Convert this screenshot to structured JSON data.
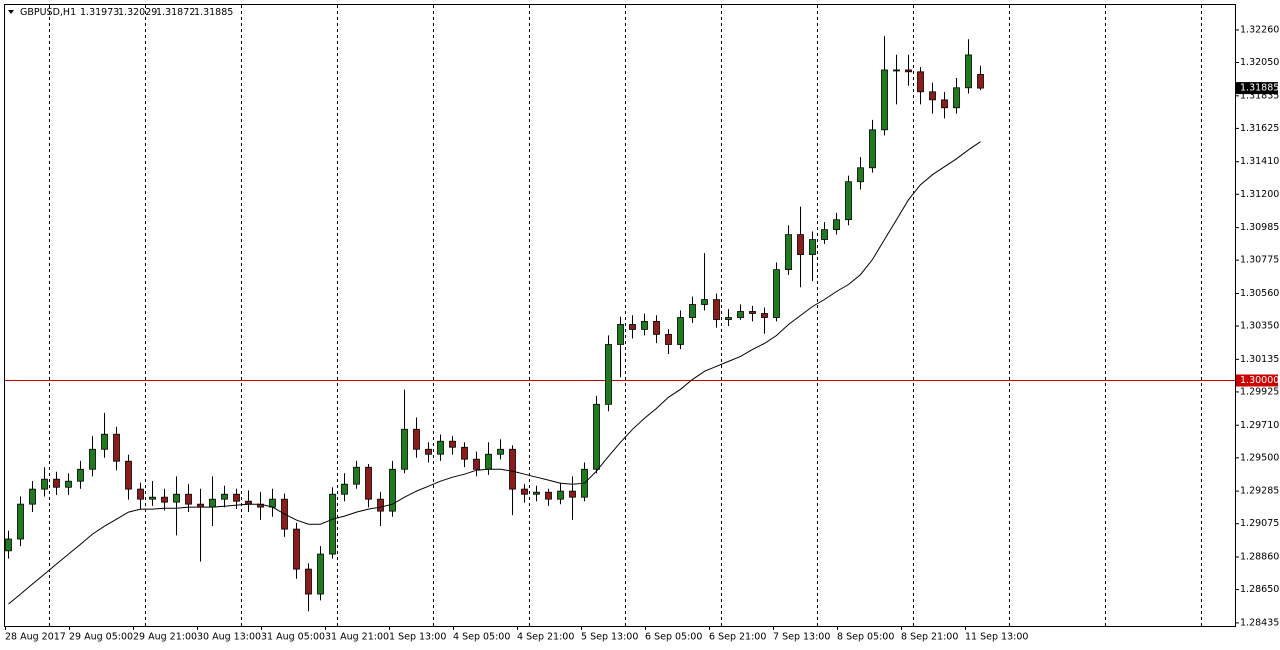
{
  "chart_data": {
    "type": "candlestick",
    "symbol": "GBPUSD,H1",
    "bull_color": "#1f7a1f",
    "bear_color": "#8b1c1c",
    "ylim": [
      1.28415,
      1.32421
    ],
    "yticks": [
      {
        "value": 1.3226,
        "label": "1.32260"
      },
      {
        "value": 1.3205,
        "label": "1.32050"
      },
      {
        "value": 1.31835,
        "label": "1.31835"
      },
      {
        "value": 1.31625,
        "label": "1.31625"
      },
      {
        "value": 1.3141,
        "label": "1.31410"
      },
      {
        "value": 1.312,
        "label": "1.31200"
      },
      {
        "value": 1.30985,
        "label": "1.30985"
      },
      {
        "value": 1.30775,
        "label": "1.30775"
      },
      {
        "value": 1.3056,
        "label": "1.30560"
      },
      {
        "value": 1.3035,
        "label": "1.30350"
      },
      {
        "value": 1.30135,
        "label": "1.30135"
      },
      {
        "value": 1.29925,
        "label": "1.29925"
      },
      {
        "value": 1.2971,
        "label": "1.29710"
      },
      {
        "value": 1.295,
        "label": "1.29500"
      },
      {
        "value": 1.29285,
        "label": "1.29285"
      },
      {
        "value": 1.29075,
        "label": "1.29075"
      },
      {
        "value": 1.2886,
        "label": "1.28860"
      },
      {
        "value": 1.2865,
        "label": "1.28650"
      },
      {
        "value": 1.28435,
        "label": "1.28435"
      }
    ],
    "time_labels": [
      "28 Aug 2017",
      "29 Aug 05:00",
      "29 Aug 21:00",
      "30 Aug 13:00",
      "31 Aug 05:00",
      "31 Aug 21:00",
      "1 Sep 13:00",
      "4 Sep 05:00",
      "4 Sep 21:00",
      "5 Sep 13:00",
      "6 Sep 05:00",
      "6 Sep 21:00",
      "7 Sep 13:00",
      "8 Sep 05:00",
      "8 Sep 21:00",
      "11 Sep 13:00"
    ],
    "hline": {
      "value": 1.3,
      "label": "1.30000",
      "color": "#cc0000"
    },
    "open": [
      1.289,
      1.28976,
      1.29201,
      1.29298,
      1.29362,
      1.2931,
      1.29349,
      1.29426,
      1.29555,
      1.29652,
      1.29478,
      1.29298,
      1.29233,
      1.29246,
      1.29214,
      1.29265,
      1.29201,
      1.29182,
      1.29233,
      1.29265,
      1.2922,
      1.29201,
      1.29182,
      1.29233,
      1.2904,
      1.28782,
      1.28621,
      1.28879,
      1.29265,
      1.2933,
      1.29439,
      1.29233,
      1.29156,
      1.29426,
      1.29684,
      1.29555,
      1.29523,
      1.29607,
      1.29568,
      1.29491,
      1.29426,
      1.29523,
      1.29555,
      1.29298,
      1.29265,
      1.29278,
      1.29233,
      1.29285,
      1.29246,
      1.29426,
      1.29845,
      1.30231,
      1.3036,
      1.30328,
      1.3038,
      1.30296,
      1.30231,
      1.30405,
      1.30489,
      1.30521,
      1.30392,
      1.30405,
      1.30444,
      1.30431,
      1.30405,
      1.30714,
      1.3094,
      1.30811,
      1.30908,
      1.30972,
      1.31036,
      1.31281,
      1.31371,
      1.31616,
      1.32002,
      1.32002,
      1.3199,
      1.31861,
      1.31809,
      1.31758,
      1.31887,
      1.31973
    ],
    "high": [
      1.2903,
      1.2925,
      1.2935,
      1.2944,
      1.2941,
      1.294,
      1.2948,
      1.2964,
      1.2979,
      1.297,
      1.2952,
      1.2934,
      1.2935,
      1.293,
      1.2938,
      1.2933,
      1.293,
      1.2938,
      1.2932,
      1.293,
      1.2929,
      1.2928,
      1.293,
      1.2927,
      1.2908,
      1.2882,
      1.2893,
      1.2931,
      1.294,
      1.2948,
      1.2946,
      1.2928,
      1.2948,
      1.2994,
      1.2976,
      1.296,
      1.2965,
      1.2964,
      1.296,
      1.2954,
      1.296,
      1.2962,
      1.2958,
      1.2933,
      1.2932,
      1.293,
      1.2934,
      1.2938,
      1.2947,
      1.299,
      1.3029,
      1.3041,
      1.3042,
      1.3043,
      1.3042,
      1.3033,
      1.3045,
      1.3054,
      1.3082,
      1.3056,
      1.3046,
      1.3049,
      1.3048,
      1.3047,
      1.3076,
      1.31,
      1.3112,
      1.3096,
      1.3102,
      1.3108,
      1.3132,
      1.3144,
      1.3168,
      1.3222,
      1.321,
      1.321,
      1.3202,
      1.3192,
      1.3186,
      1.3195,
      1.322,
      1.32029
    ],
    "low": [
      1.2885,
      1.2893,
      1.2915,
      1.2925,
      1.2926,
      1.2926,
      1.293,
      1.2938,
      1.295,
      1.2942,
      1.2923,
      1.2917,
      1.2919,
      1.2916,
      1.29,
      1.2915,
      1.2883,
      1.2906,
      1.2918,
      1.2917,
      1.2915,
      1.291,
      1.2912,
      1.2899,
      1.2872,
      1.2851,
      1.2858,
      1.2885,
      1.2922,
      1.293,
      1.2918,
      1.2906,
      1.2912,
      1.294,
      1.295,
      1.2947,
      1.2948,
      1.2952,
      1.2944,
      1.2938,
      1.2939,
      1.2949,
      1.2913,
      1.2921,
      1.2922,
      1.2919,
      1.292,
      1.291,
      1.2922,
      1.294,
      1.298,
      1.3002,
      1.3027,
      1.3029,
      1.3024,
      1.3017,
      1.302,
      1.3037,
      1.3045,
      1.3034,
      1.3035,
      1.3039,
      1.3038,
      1.303,
      1.3038,
      1.3068,
      1.306,
      1.3064,
      1.3088,
      1.3094,
      1.31,
      1.3123,
      1.3134,
      1.3158,
      1.3178,
      1.319,
      1.3178,
      1.3172,
      1.3169,
      1.3172,
      1.3185,
      1.31872
    ],
    "close": [
      1.28976,
      1.29201,
      1.29298,
      1.29362,
      1.2931,
      1.29349,
      1.29426,
      1.29555,
      1.29652,
      1.29478,
      1.29298,
      1.29233,
      1.29246,
      1.29214,
      1.29265,
      1.29201,
      1.29182,
      1.29233,
      1.29265,
      1.2922,
      1.29201,
      1.29182,
      1.29233,
      1.2904,
      1.28782,
      1.28621,
      1.28879,
      1.29265,
      1.2933,
      1.29439,
      1.29233,
      1.29156,
      1.29426,
      1.29684,
      1.29555,
      1.29523,
      1.29607,
      1.29568,
      1.29491,
      1.29426,
      1.29523,
      1.29555,
      1.29298,
      1.29265,
      1.29278,
      1.29233,
      1.29285,
      1.29246,
      1.29426,
      1.29845,
      1.30231,
      1.3036,
      1.30328,
      1.3038,
      1.30296,
      1.30231,
      1.30405,
      1.30489,
      1.30521,
      1.30392,
      1.30405,
      1.30444,
      1.30431,
      1.30405,
      1.30714,
      1.3094,
      1.30811,
      1.30908,
      1.30972,
      1.31036,
      1.31281,
      1.31371,
      1.31616,
      1.32002,
      1.32002,
      1.3199,
      1.31861,
      1.31809,
      1.31758,
      1.31887,
      1.32099,
      1.31885
    ],
    "ma": {
      "color": "#000000",
      "values": [
        1.28557,
        1.28621,
        1.28686,
        1.2875,
        1.28815,
        1.28879,
        1.28943,
        1.29008,
        1.29059,
        1.29104,
        1.2915,
        1.29169,
        1.29169,
        1.29175,
        1.29175,
        1.29182,
        1.29182,
        1.29182,
        1.29188,
        1.29195,
        1.29201,
        1.29201,
        1.29182,
        1.29137,
        1.29098,
        1.29072,
        1.29072,
        1.29104,
        1.29124,
        1.2915,
        1.29169,
        1.29182,
        1.29201,
        1.29246,
        1.29285,
        1.29317,
        1.29349,
        1.29375,
        1.29394,
        1.2942,
        1.29426,
        1.29426,
        1.29414,
        1.29394,
        1.29375,
        1.29356,
        1.29336,
        1.2933,
        1.29336,
        1.29414,
        1.2951,
        1.296,
        1.29684,
        1.29755,
        1.29819,
        1.2989,
        1.29942,
        1.30006,
        1.30058,
        1.3009,
        1.30122,
        1.30154,
        1.30199,
        1.30238,
        1.30289,
        1.3036,
        1.30418,
        1.30476,
        1.30521,
        1.30573,
        1.30618,
        1.30682,
        1.30779,
        1.30908,
        1.31036,
        1.31165,
        1.31262,
        1.31326,
        1.31378,
        1.31429,
        1.31487,
        1.31539
      ]
    }
  }
}
